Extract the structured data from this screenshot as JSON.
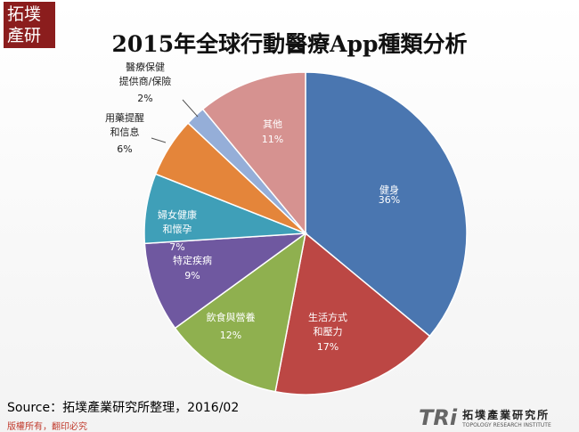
{
  "header": {
    "logo_top": "拓墣",
    "logo_bottom": "產研"
  },
  "chart_data": {
    "type": "pie",
    "title": "2015年全球行動醫療App種類分析",
    "categories": [
      "健身",
      "生活方式\n和壓力",
      "飲食與營養",
      "特定疾病",
      "婦女健康\n和懷孕",
      "用藥提醒\n和信息",
      "醫療保健\n提供商/保險",
      "其他"
    ],
    "values": [
      36,
      17,
      12,
      9,
      7,
      6,
      2,
      11
    ],
    "value_labels": [
      "36%",
      "17%",
      "12%",
      "9%",
      "7%",
      "6%",
      "2%",
      "11%"
    ],
    "colors": [
      "#4a76b0",
      "#bc4744",
      "#8fb04f",
      "#6f58a0",
      "#3f9fb8",
      "#e4853a",
      "#95aed8",
      "#d69290"
    ]
  },
  "source": "Source：拓墣產業研究所整理，2016/02",
  "footer": {
    "copyright": "版權所有，翻印必究",
    "brand": "TRi",
    "brand_name": "拓墣產業研究所",
    "brand_en": "TOPOLOGY RESEARCH INSTITUTE"
  }
}
